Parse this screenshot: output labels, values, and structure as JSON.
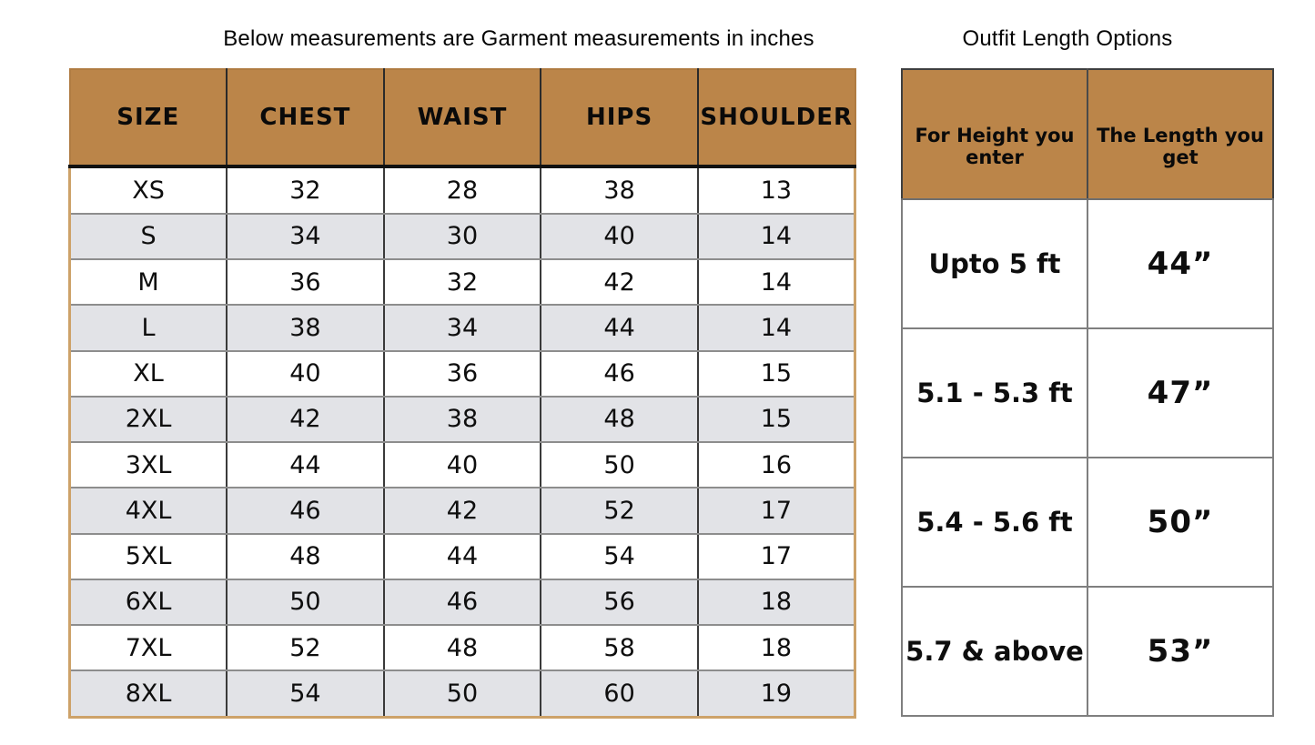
{
  "page": {
    "left_title": "Below measurements are Garment measurements in inches",
    "right_title": "Outfit Length Options"
  },
  "colors": {
    "header_bg": "#bb8549",
    "alt_row_bg": "#e2e3e7",
    "left_table_outer_border": "#cda269",
    "dark_border": "#3a3a3a",
    "row_divider": "#8d8d8d",
    "text": "#0b0b0b"
  },
  "chart_data": [
    {
      "type": "table",
      "title": "Below measurements are Garment measurements in inches",
      "columns": [
        "SIZE",
        "CHEST",
        "WAIST",
        "HIPS",
        "SHOULDER"
      ],
      "rows": [
        [
          "XS",
          "32",
          "28",
          "38",
          "13"
        ],
        [
          "S",
          "34",
          "30",
          "40",
          "14"
        ],
        [
          "M",
          "36",
          "32",
          "42",
          "14"
        ],
        [
          "L",
          "38",
          "34",
          "44",
          "14"
        ],
        [
          "XL",
          "40",
          "36",
          "46",
          "15"
        ],
        [
          "2XL",
          "42",
          "38",
          "48",
          "15"
        ],
        [
          "3XL",
          "44",
          "40",
          "50",
          "16"
        ],
        [
          "4XL",
          "46",
          "42",
          "52",
          "17"
        ],
        [
          "5XL",
          "48",
          "44",
          "54",
          "17"
        ],
        [
          "6XL",
          "50",
          "46",
          "56",
          "18"
        ],
        [
          "7XL",
          "52",
          "48",
          "58",
          "18"
        ],
        [
          "8XL",
          "54",
          "50",
          "60",
          "19"
        ]
      ]
    },
    {
      "type": "table",
      "title": "Outfit Length Options",
      "columns": [
        "For Height you enter",
        "The Length you get"
      ],
      "rows": [
        [
          "Upto 5 ft",
          "44”"
        ],
        [
          "5.1 - 5.3 ft",
          "47”"
        ],
        [
          "5.4 - 5.6 ft",
          "50”"
        ],
        [
          "5.7 & above",
          "53”"
        ]
      ]
    }
  ]
}
